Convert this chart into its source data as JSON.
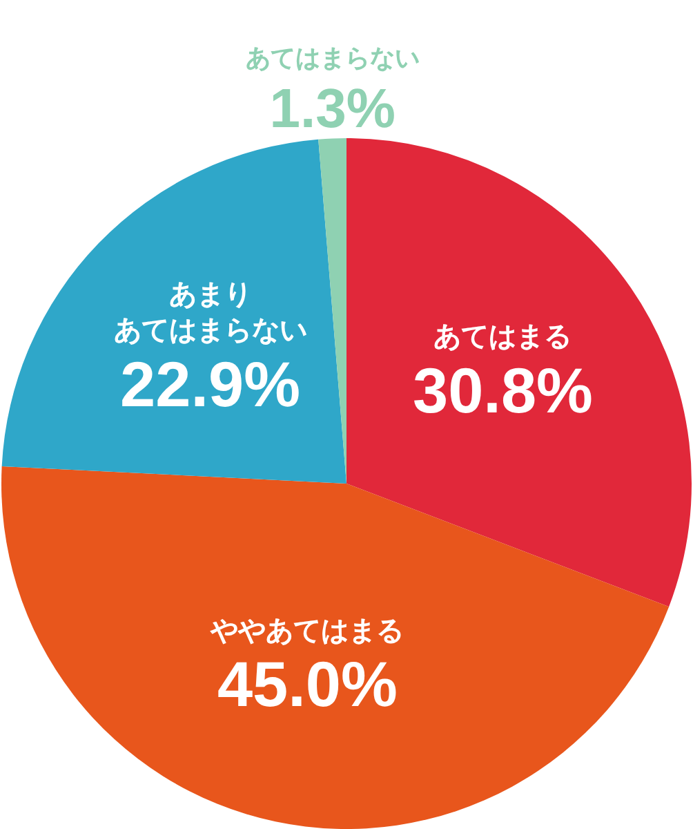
{
  "chart_data": {
    "type": "pie",
    "categories": [
      "あてはまる",
      "ややあてはまる",
      "あまりあてはまらない",
      "あてはまらない"
    ],
    "values": [
      30.8,
      45.0,
      22.9,
      1.3
    ],
    "colors": [
      "#e1283a",
      "#e8561c",
      "#2fa7c9",
      "#8fd1b2"
    ],
    "value_labels": [
      "30.8%",
      "45.0%",
      "22.9%",
      "1.3%"
    ],
    "legend": false
  }
}
